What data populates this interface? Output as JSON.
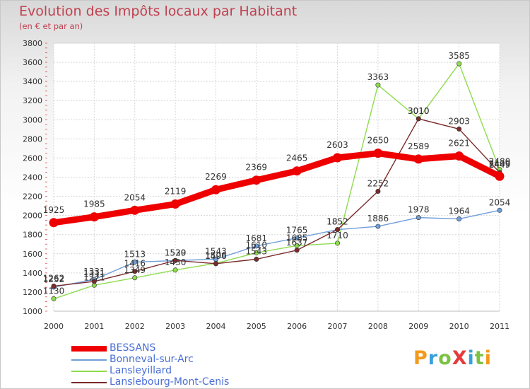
{
  "title": "Evolution des Impôts locaux par Habitant",
  "subtitle": "(en € et par an)",
  "logo": {
    "text": "ProXiti",
    "colors": [
      "#f39a1c",
      "#3aa0d8",
      "#7cc242",
      "#e63b3b",
      "#3aa0d8",
      "#7cc242",
      "#f39a1c"
    ]
  },
  "chart_data": {
    "type": "line",
    "title": "Evolution des Impôts locaux par Habitant",
    "subtitle": "(en € et par an)",
    "x": [
      "2000",
      "2001",
      "2002",
      "2003",
      "2004",
      "2005",
      "2006",
      "2007",
      "2008",
      "2009",
      "2010",
      "2011"
    ],
    "ylim": [
      1000,
      3800
    ],
    "yticks": [
      1000,
      1200,
      1400,
      1600,
      1800,
      2000,
      2200,
      2400,
      2600,
      2800,
      3000,
      3200,
      3400,
      3600,
      3800
    ],
    "grid": true,
    "legend": "bottom-left",
    "series": [
      {
        "name": "BESSANS",
        "color": "#ee0000",
        "values": [
          1925,
          1985,
          2054,
          2119,
          2269,
          2369,
          2465,
          2603,
          2650,
          2589,
          2621,
          2409
        ],
        "labels": [
          "1925",
          "1985",
          "2054",
          "2119",
          "2269",
          "2369",
          "2465",
          "2603",
          "2650",
          "2589",
          "2621",
          "2409"
        ]
      },
      {
        "name": "Bonneval-sur-Arc",
        "color": "#6f9ed8",
        "values": [
          1252,
          1331,
          1513,
          1529,
          1543,
          1681,
          1765,
          1852,
          1886,
          1978,
          1964,
          2054
        ],
        "labels": [
          "1252",
          "1331",
          "1513",
          "1529",
          "1543",
          "1681",
          "1765",
          "1852",
          "1886",
          "1978",
          "1964",
          "2054"
        ]
      },
      {
        "name": "Lansleyillard",
        "color": "#8fdc4f",
        "values": [
          1130,
          1271,
          1349,
          1430,
          1500,
          1610,
          1685,
          1710,
          3363,
          3010,
          3585,
          2480
        ],
        "labels": [
          "1130",
          "1271",
          "1349",
          "1430",
          "1500",
          "1610",
          "1685",
          "1710",
          "3363",
          "3010",
          "3585",
          "2480"
        ]
      },
      {
        "name": "Lanslebourg-Mont-Cenis",
        "color": "#7a2a2a",
        "values": [
          1262,
          1311,
          1416,
          1530,
          1496,
          1543,
          1637,
          1852,
          2252,
          3010,
          2903,
          2449
        ],
        "labels": [
          "1262",
          "1311",
          "1416",
          "1530",
          "1496",
          "1543",
          "1637",
          "1852",
          "2252",
          "3010",
          "2903",
          "2449"
        ]
      }
    ]
  }
}
